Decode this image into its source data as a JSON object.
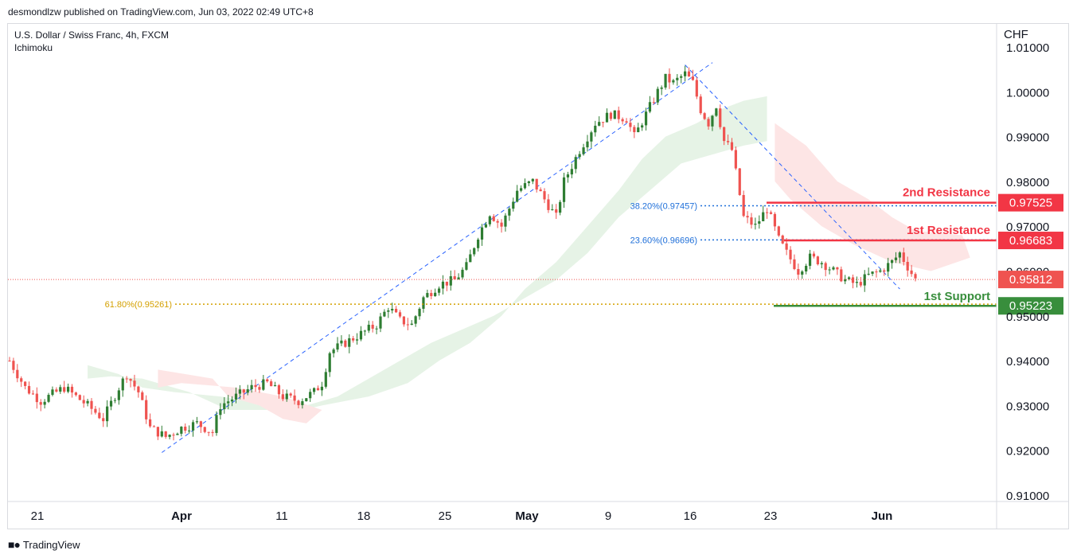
{
  "header": {
    "publisher_line": "desmondlzw published on TradingView.com, Jun 03, 2022 02:49 UTC+8"
  },
  "chart_header": {
    "symbol_line": "U.S. Dollar / Swiss Franc, 4h, FXCM",
    "indicator": "Ichimoku"
  },
  "footer": {
    "brand": "TradingView",
    "logo_icon": "tradingview-logo-icon"
  },
  "colors": {
    "up": "#26a69a",
    "up_body": "#2e7d32",
    "down": "#ef5350",
    "resistance": "#f23645",
    "support": "#388e3c",
    "fib_blue": "#1e6fd9",
    "fib_gold": "#d4a000",
    "cloud_green": "#e6f3e6",
    "cloud_red": "#fde5e5",
    "trend": "#2962ff"
  },
  "chart_data": {
    "type": "candlestick",
    "title": "U.S. Dollar / Swiss Franc, 4h, FXCM",
    "currency": "CHF",
    "ylim": [
      0.91,
      1.012
    ],
    "y_ticks": [
      "1.01000",
      "1.00000",
      "0.99000",
      "0.98000",
      "0.97000",
      "0.96000",
      "0.95000",
      "0.94000",
      "0.93000",
      "0.92000",
      "0.91000"
    ],
    "x_ticks": [
      {
        "label": "21",
        "bold": false
      },
      {
        "label": "Apr",
        "bold": true
      },
      {
        "label": "11",
        "bold": false
      },
      {
        "label": "18",
        "bold": false
      },
      {
        "label": "25",
        "bold": false
      },
      {
        "label": "May",
        "bold": true
      },
      {
        "label": "9",
        "bold": false
      },
      {
        "label": "16",
        "bold": false
      },
      {
        "label": "23",
        "bold": false
      },
      {
        "label": "Jun",
        "bold": true
      }
    ],
    "price_path": [
      [
        0,
        0.94
      ],
      [
        4,
        0.934
      ],
      [
        8,
        0.931
      ],
      [
        14,
        0.934
      ],
      [
        20,
        0.93
      ],
      [
        24,
        0.927
      ],
      [
        28,
        0.934
      ],
      [
        30,
        0.937
      ],
      [
        33,
        0.933
      ],
      [
        36,
        0.925
      ],
      [
        40,
        0.923
      ],
      [
        44,
        0.925
      ],
      [
        48,
        0.926
      ],
      [
        52,
        0.924
      ],
      [
        54,
        0.93
      ],
      [
        58,
        0.932
      ],
      [
        62,
        0.934
      ],
      [
        66,
        0.935
      ],
      [
        70,
        0.932
      ],
      [
        74,
        0.931
      ],
      [
        78,
        0.933
      ],
      [
        80,
        0.935
      ],
      [
        82,
        0.942
      ],
      [
        86,
        0.944
      ],
      [
        90,
        0.946
      ],
      [
        94,
        0.948
      ],
      [
        97,
        0.952
      ],
      [
        100,
        0.949
      ],
      [
        103,
        0.948
      ],
      [
        106,
        0.954
      ],
      [
        110,
        0.957
      ],
      [
        114,
        0.958
      ],
      [
        117,
        0.961
      ],
      [
        120,
        0.968
      ],
      [
        123,
        0.973
      ],
      [
        126,
        0.97
      ],
      [
        130,
        0.978
      ],
      [
        134,
        0.98
      ],
      [
        137,
        0.976
      ],
      [
        140,
        0.972
      ],
      [
        142,
        0.98
      ],
      [
        146,
        0.987
      ],
      [
        150,
        0.993
      ],
      [
        154,
        0.995
      ],
      [
        158,
        0.994
      ],
      [
        160,
        0.99
      ],
      [
        163,
        0.995
      ],
      [
        166,
        1.0
      ],
      [
        168,
        1.003
      ],
      [
        170,
        1.002
      ],
      [
        173,
        1.004
      ],
      [
        175,
        1.002
      ],
      [
        177,
        0.996
      ],
      [
        179,
        0.993
      ],
      [
        181,
        0.997
      ],
      [
        183,
        0.989
      ],
      [
        185,
        0.987
      ],
      [
        188,
        0.972
      ],
      [
        191,
        0.97
      ],
      [
        194,
        0.974
      ],
      [
        197,
        0.967
      ],
      [
        199,
        0.964
      ],
      [
        202,
        0.96
      ],
      [
        205,
        0.963
      ],
      [
        208,
        0.962
      ],
      [
        211,
        0.96
      ],
      [
        214,
        0.958
      ],
      [
        217,
        0.957
      ],
      [
        220,
        0.959
      ],
      [
        223,
        0.96
      ],
      [
        226,
        0.962
      ],
      [
        228,
        0.964
      ],
      [
        230,
        0.961
      ],
      [
        232,
        0.9581
      ]
    ],
    "current_price": 0.95812,
    "levels": [
      {
        "name": "2nd Resistance",
        "price_label": "0.97525",
        "price": 0.97525
      },
      {
        "name": "1st Resistance",
        "price_label": "0.96683",
        "price": 0.96683
      },
      {
        "name": "1st Support",
        "price_label": "0.95223",
        "price": 0.95223
      }
    ],
    "fib_levels": [
      {
        "label": "38.20%(0.97457)",
        "price": 0.97457
      },
      {
        "label": "23.60%(0.96696)",
        "price": 0.96696
      },
      {
        "label": "61.80%(0.95261)",
        "price": 0.95261
      }
    ],
    "current_price_label": "0.95812",
    "grid": false
  }
}
